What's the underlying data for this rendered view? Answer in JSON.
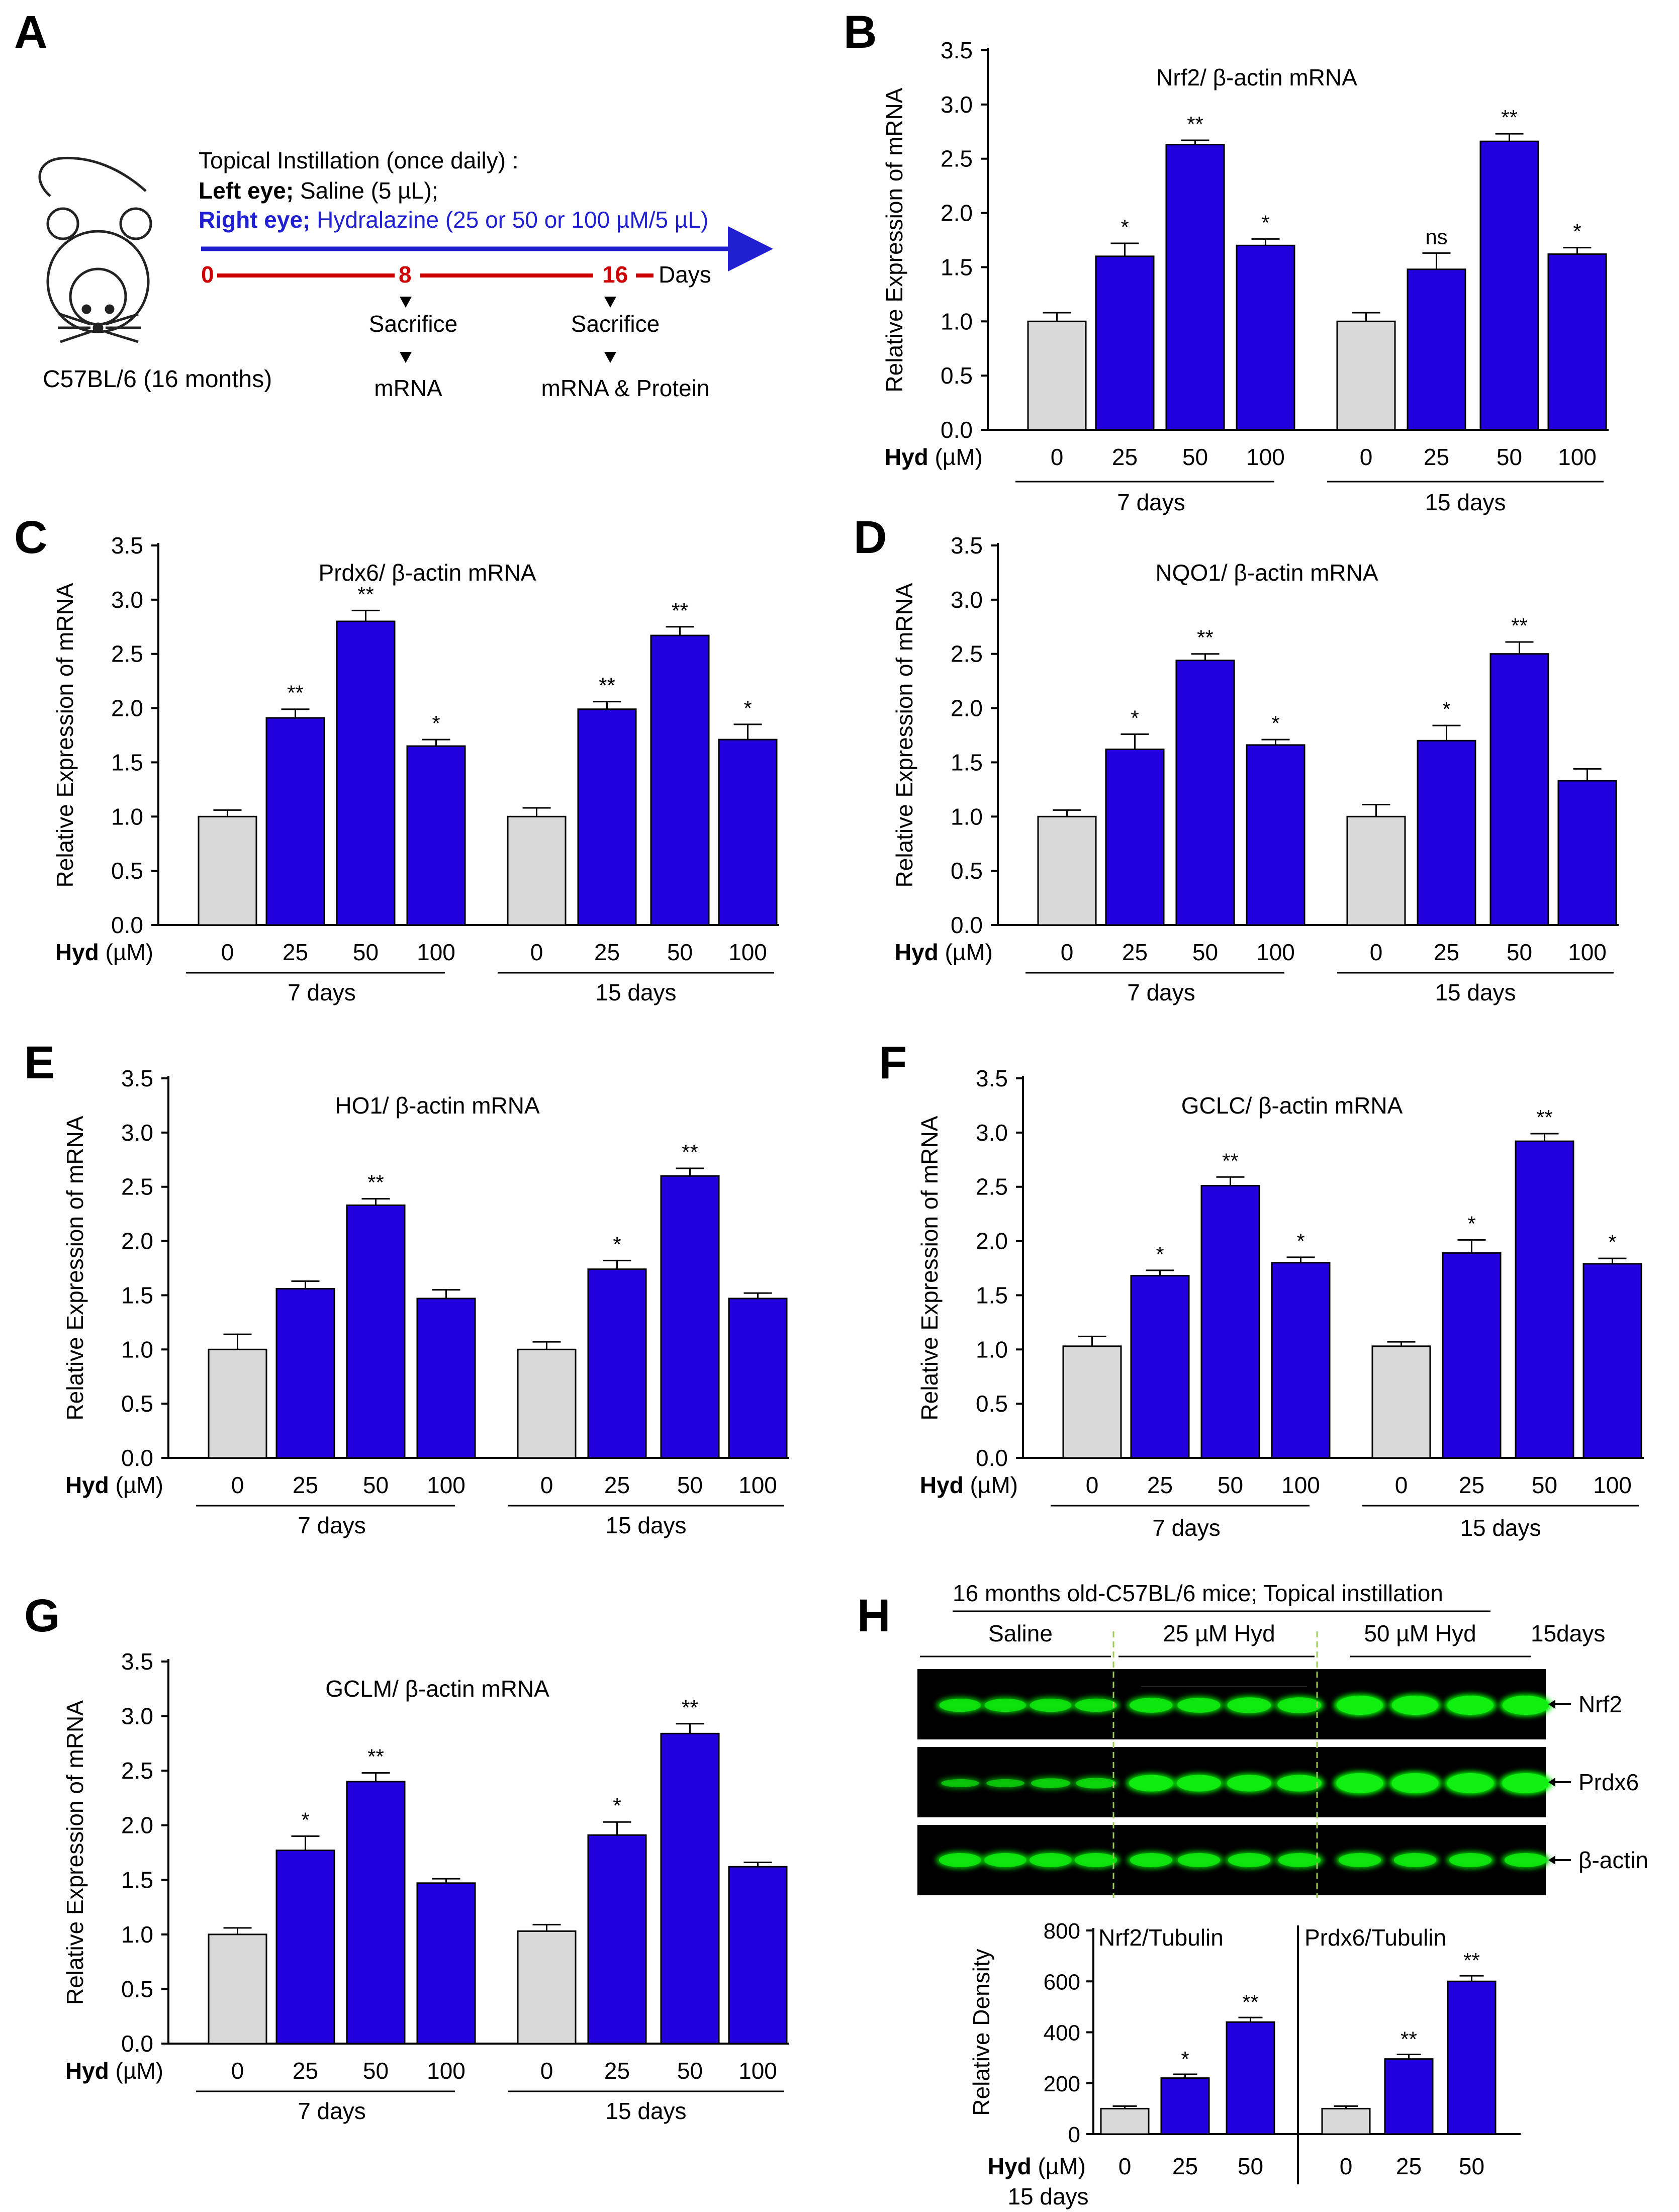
{
  "colors": {
    "bar_control": "#d9d9d9",
    "bar_hyd": "#2200dd",
    "axis": "#000000",
    "timeline": "#cc0000",
    "band_green": "#11ee11"
  },
  "icons": [
    "mouse-icon",
    "arrow-down-icon"
  ],
  "panel_a": {
    "letter": "A",
    "heading": "Topical Instillation  (once daily) :",
    "left_bold": "Left eye;",
    "left_rest": " Saline (5 µL);",
    "right_bold": "Right eye;",
    "right_rest": " Hydralazine (25 or 50  or 100 µM/5 µL)",
    "t0": "0",
    "t8": "8",
    "t16": "16",
    "days": "Days",
    "sacrifice1": "Sacrifice",
    "sacrifice2": "Sacrifice",
    "out1": "mRNA",
    "out2": "mRNA & Protein",
    "strain": "C57BL/6 (16 months)"
  },
  "common": {
    "ylabel": "Relative Expression of mRNA",
    "hyd_bold": "Hyd",
    "hyd_unit": " (µM)",
    "group1": "7 days",
    "group2": "15 days"
  },
  "chart_data": [
    {
      "panel": "B",
      "type": "bar",
      "title": "Nrf2/ β-actin mRNA",
      "ylabel": "Relative Expression of mRNA",
      "ylim": [
        0,
        3.5
      ],
      "categories": [
        "0",
        "25",
        "50",
        "100",
        "0",
        "25",
        "50",
        "100"
      ],
      "groups": [
        "7 days",
        "15 days"
      ],
      "values": [
        1.0,
        1.6,
        2.63,
        1.7,
        1.0,
        1.48,
        2.66,
        1.62
      ],
      "errors": [
        0.08,
        0.12,
        0.04,
        0.06,
        0.08,
        0.15,
        0.07,
        0.06
      ],
      "annotations": [
        "",
        "*",
        "**",
        "*",
        "",
        "ns",
        "**",
        "*"
      ]
    },
    {
      "panel": "C",
      "type": "bar",
      "title": "Prdx6/ β-actin mRNA",
      "ylabel": "Relative Expression of mRNA",
      "ylim": [
        0,
        3.5
      ],
      "categories": [
        "0",
        "25",
        "50",
        "100",
        "0",
        "25",
        "50",
        "100"
      ],
      "groups": [
        "7 days",
        "15 days"
      ],
      "values": [
        1.0,
        1.91,
        2.8,
        1.65,
        1.0,
        1.99,
        2.67,
        1.71
      ],
      "errors": [
        0.06,
        0.08,
        0.1,
        0.06,
        0.08,
        0.07,
        0.08,
        0.14
      ],
      "annotations": [
        "",
        "**",
        "**",
        "*",
        "",
        "**",
        "**",
        "*"
      ]
    },
    {
      "panel": "D",
      "type": "bar",
      "title": "NQO1/ β-actin mRNA",
      "ylabel": "Relative Expression of mRNA",
      "ylim": [
        0,
        3.5
      ],
      "categories": [
        "0",
        "25",
        "50",
        "100",
        "0",
        "25",
        "50",
        "100"
      ],
      "groups": [
        "7 days",
        "15 days"
      ],
      "values": [
        1.0,
        1.62,
        2.44,
        1.66,
        1.0,
        1.7,
        2.5,
        1.33
      ],
      "errors": [
        0.06,
        0.14,
        0.06,
        0.05,
        0.11,
        0.14,
        0.11,
        0.11
      ],
      "annotations": [
        "",
        "*",
        "**",
        "*",
        "",
        "*",
        "**",
        ""
      ]
    },
    {
      "panel": "E",
      "type": "bar",
      "title": "HO1/ β-actin mRNA",
      "ylabel": "Relative Expression of mRNA",
      "ylim": [
        0,
        3.5
      ],
      "categories": [
        "0",
        "25",
        "50",
        "100",
        "0",
        "25",
        "50",
        "100"
      ],
      "groups": [
        "7 days",
        "15 days"
      ],
      "values": [
        1.0,
        1.56,
        2.33,
        1.47,
        1.0,
        1.74,
        2.6,
        1.47
      ],
      "errors": [
        0.14,
        0.07,
        0.06,
        0.08,
        0.07,
        0.08,
        0.07,
        0.05
      ],
      "annotations": [
        "",
        "",
        "**",
        "",
        "",
        "*",
        "**",
        ""
      ]
    },
    {
      "panel": "F",
      "type": "bar",
      "title": "GCLC/ β-actin mRNA",
      "ylabel": "Relative Expression of mRNA",
      "ylim": [
        0,
        3.5
      ],
      "categories": [
        "0",
        "25",
        "50",
        "100",
        "0",
        "25",
        "50",
        "100"
      ],
      "groups": [
        "7 days",
        "15 days"
      ],
      "values": [
        1.03,
        1.68,
        2.51,
        1.8,
        1.03,
        1.89,
        2.92,
        1.79
      ],
      "errors": [
        0.09,
        0.05,
        0.08,
        0.05,
        0.04,
        0.12,
        0.07,
        0.05
      ],
      "annotations": [
        "",
        "*",
        "**",
        "*",
        "",
        "*",
        "**",
        "*"
      ]
    },
    {
      "panel": "G",
      "type": "bar",
      "title": "GCLM/ β-actin mRNA",
      "ylabel": "Relative Expression of mRNA",
      "ylim": [
        0,
        3.5
      ],
      "categories": [
        "0",
        "25",
        "50",
        "100",
        "0",
        "25",
        "50",
        "100"
      ],
      "groups": [
        "7 days",
        "15 days"
      ],
      "values": [
        1.0,
        1.77,
        2.4,
        1.47,
        1.03,
        1.91,
        2.84,
        1.62
      ],
      "errors": [
        0.06,
        0.13,
        0.08,
        0.04,
        0.06,
        0.12,
        0.09,
        0.04
      ],
      "annotations": [
        "",
        "*",
        "**",
        "",
        "",
        "*",
        "**",
        ""
      ]
    }
  ],
  "panel_h": {
    "letter": "H",
    "title": "16 months old-C57BL/6 mice; Topical instillation",
    "groups": [
      "Saline",
      "25 µM  Hyd",
      "50 µM  Hyd"
    ],
    "duration": "15days",
    "blot_labels": [
      "Nrf2",
      "Prdx6",
      "β-actin"
    ],
    "blot_intensity": [
      [
        0.6,
        0.6,
        0.6,
        0.6,
        0.7,
        0.7,
        0.75,
        0.75,
        0.95,
        0.95,
        0.95,
        0.95
      ],
      [
        0.3,
        0.3,
        0.4,
        0.45,
        0.8,
        0.8,
        0.8,
        0.8,
        1.0,
        1.0,
        1.0,
        1.0
      ],
      [
        0.65,
        0.65,
        0.65,
        0.65,
        0.65,
        0.65,
        0.65,
        0.65,
        0.65,
        0.65,
        0.65,
        0.65
      ]
    ],
    "density": {
      "type": "bar",
      "ylabel": "Relative Density",
      "ylim": [
        0,
        800
      ],
      "yticks": [
        "0",
        "200",
        "400",
        "600",
        "800"
      ],
      "hyd_bold": "Hyd",
      "hyd_unit": " (µM)",
      "footer": "15 days",
      "subcharts": [
        {
          "title": "Nrf2/Tubulin",
          "categories": [
            "0",
            "25",
            "50"
          ],
          "values": [
            100,
            220,
            440
          ],
          "errors": [
            10,
            15,
            18
          ],
          "annotations": [
            "",
            "*",
            "**"
          ]
        },
        {
          "title": "Prdx6/Tubulin",
          "categories": [
            "0",
            "25",
            "50"
          ],
          "values": [
            100,
            295,
            600
          ],
          "errors": [
            10,
            18,
            22
          ],
          "annotations": [
            "",
            "**",
            "**"
          ]
        }
      ]
    }
  }
}
